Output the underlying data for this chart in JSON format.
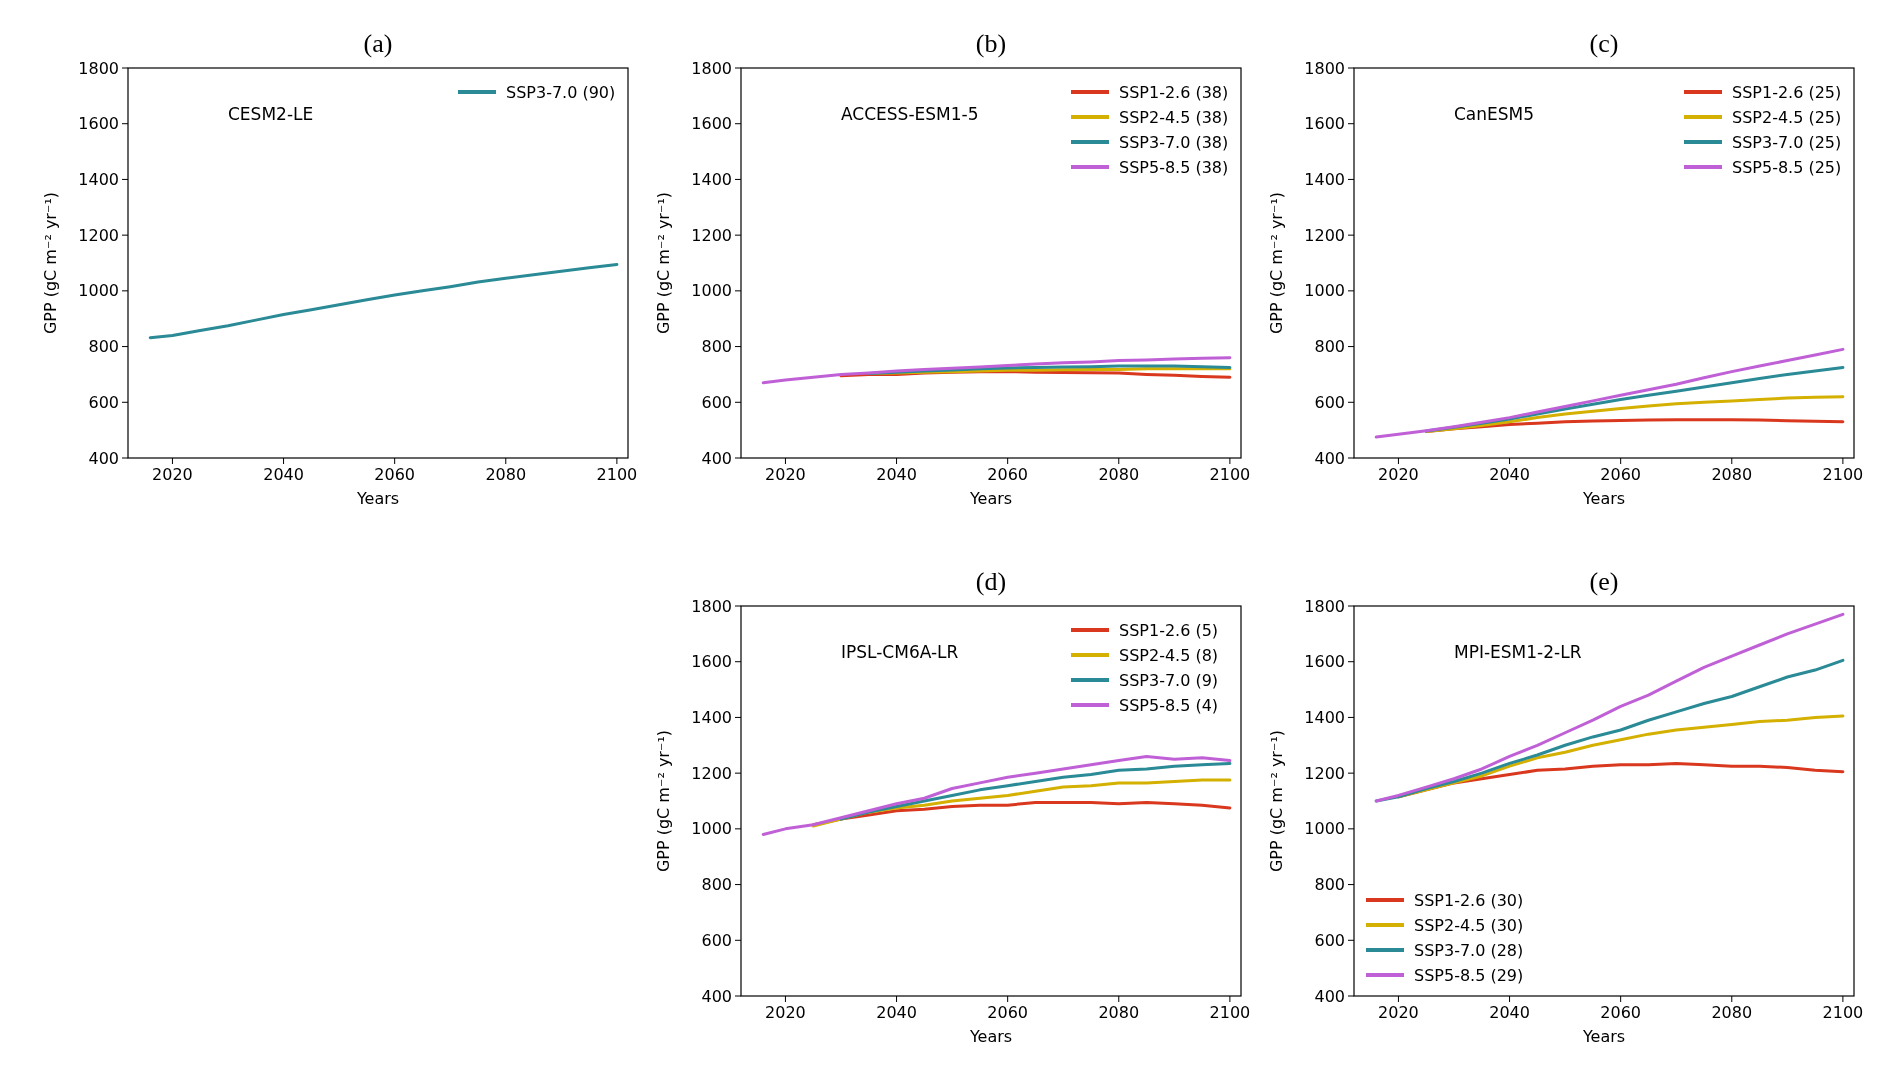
{
  "chart_data": [
    {
      "type": "line",
      "title": "(a)",
      "xlabel": "Years",
      "ylabel": "GPP (gC m⁻² yr⁻¹)",
      "annotations": [
        "CESM2-LE"
      ],
      "x": [
        2016,
        2020,
        2025,
        2030,
        2035,
        2040,
        2045,
        2050,
        2055,
        2060,
        2065,
        2070,
        2075,
        2080,
        2085,
        2090,
        2095,
        2100
      ],
      "xlim": [
        2012,
        2102
      ],
      "xticks": [
        2020,
        2040,
        2060,
        2080,
        2100
      ],
      "ylim": [
        400,
        1800
      ],
      "yticks": [
        400,
        600,
        800,
        1000,
        1200,
        1400,
        1600,
        1800
      ],
      "grid": false,
      "legend": "top right",
      "series": [
        {
          "name": "SSP3-7.0 (90)",
          "color": "#2a8a96",
          "values": [
            832,
            840,
            858,
            875,
            895,
            915,
            932,
            950,
            968,
            985,
            1000,
            1015,
            1032,
            1045,
            1058,
            1070,
            1083,
            1095
          ]
        }
      ]
    },
    {
      "type": "line",
      "title": "(b)",
      "xlabel": "Years",
      "ylabel": "GPP (gC m⁻² yr⁻¹)",
      "annotations": [
        "ACCESS-ESM1-5"
      ],
      "x": [
        2016,
        2020,
        2025,
        2030,
        2035,
        2040,
        2045,
        2050,
        2055,
        2060,
        2065,
        2070,
        2075,
        2080,
        2085,
        2090,
        2095,
        2100
      ],
      "xlim": [
        2012,
        2102
      ],
      "xticks": [
        2020,
        2040,
        2060,
        2080,
        2100
      ],
      "ylim": [
        400,
        1800
      ],
      "yticks": [
        400,
        600,
        800,
        1000,
        1200,
        1400,
        1600,
        1800
      ],
      "grid": false,
      "legend": "top right",
      "series": [
        {
          "name": "SSP1-2.6 (38)",
          "color": "#d9381e",
          "values": [
            null,
            null,
            null,
            695,
            700,
            700,
            705,
            708,
            710,
            710,
            708,
            707,
            706,
            705,
            700,
            697,
            693,
            690
          ]
        },
        {
          "name": "SSP2-4.5 (38)",
          "color": "#d4b000",
          "values": [
            null,
            null,
            null,
            null,
            703,
            705,
            708,
            710,
            712,
            715,
            715,
            717,
            718,
            718,
            720,
            720,
            720,
            720
          ]
        },
        {
          "name": "SSP3-7.0 (38)",
          "color": "#2a8a96",
          "values": [
            null,
            null,
            null,
            null,
            703,
            708,
            712,
            716,
            720,
            723,
            725,
            727,
            728,
            730,
            730,
            730,
            728,
            725
          ]
        },
        {
          "name": "SSP5-8.5 (38)",
          "color": "#c060d6",
          "values": [
            670,
            680,
            690,
            700,
            705,
            712,
            718,
            722,
            727,
            732,
            737,
            742,
            745,
            750,
            752,
            755,
            758,
            760
          ]
        }
      ]
    },
    {
      "type": "line",
      "title": "(c)",
      "xlabel": "Years",
      "ylabel": "GPP (gC m⁻² yr⁻¹)",
      "annotations": [
        "CanESM5"
      ],
      "x": [
        2016,
        2020,
        2025,
        2030,
        2035,
        2040,
        2045,
        2050,
        2055,
        2060,
        2065,
        2070,
        2075,
        2080,
        2085,
        2090,
        2095,
        2100
      ],
      "xlim": [
        2012,
        2102
      ],
      "xticks": [
        2020,
        2040,
        2060,
        2080,
        2100
      ],
      "ylim": [
        400,
        1800
      ],
      "yticks": [
        400,
        600,
        800,
        1000,
        1200,
        1400,
        1600,
        1800
      ],
      "grid": false,
      "legend": "top right",
      "series": [
        {
          "name": "SSP1-2.6 (25)",
          "color": "#d9381e",
          "values": [
            null,
            null,
            495,
            505,
            512,
            520,
            525,
            530,
            533,
            535,
            536,
            537,
            537,
            537,
            536,
            534,
            532,
            530
          ]
        },
        {
          "name": "SSP2-4.5 (25)",
          "color": "#d4b000",
          "values": [
            null,
            null,
            495,
            505,
            517,
            530,
            545,
            558,
            568,
            578,
            587,
            595,
            600,
            605,
            610,
            615,
            618,
            620
          ]
        },
        {
          "name": "SSP3-7.0 (25)",
          "color": "#2a8a96",
          "values": [
            null,
            null,
            497,
            510,
            525,
            540,
            558,
            576,
            593,
            610,
            625,
            640,
            655,
            670,
            685,
            700,
            712,
            725
          ]
        },
        {
          "name": "SSP5-8.5 (25)",
          "color": "#c060d6",
          "values": [
            475,
            485,
            498,
            512,
            528,
            545,
            565,
            585,
            605,
            625,
            645,
            665,
            688,
            710,
            730,
            750,
            770,
            790
          ]
        }
      ]
    },
    {
      "type": "line",
      "title": "(d)",
      "xlabel": "Years",
      "ylabel": "GPP (gC m⁻² yr⁻¹)",
      "annotations": [
        "IPSL-CM6A-LR"
      ],
      "x": [
        2016,
        2020,
        2025,
        2030,
        2035,
        2040,
        2045,
        2050,
        2055,
        2060,
        2065,
        2070,
        2075,
        2080,
        2085,
        2090,
        2095,
        2100
      ],
      "xlim": [
        2012,
        2102
      ],
      "xticks": [
        2020,
        2040,
        2060,
        2080,
        2100
      ],
      "ylim": [
        400,
        1800
      ],
      "yticks": [
        400,
        600,
        800,
        1000,
        1200,
        1400,
        1600,
        1800
      ],
      "grid": false,
      "legend": "top right",
      "series": [
        {
          "name": "SSP1-2.6 (5)",
          "color": "#d9381e",
          "values": [
            null,
            null,
            1015,
            1035,
            1050,
            1065,
            1070,
            1080,
            1085,
            1085,
            1095,
            1095,
            1095,
            1090,
            1095,
            1090,
            1085,
            1075
          ]
        },
        {
          "name": "SSP2-4.5 (8)",
          "color": "#d4b000",
          "values": [
            null,
            null,
            1010,
            1035,
            1060,
            1075,
            1085,
            1100,
            1110,
            1120,
            1135,
            1150,
            1155,
            1165,
            1165,
            1170,
            1175,
            1175
          ]
        },
        {
          "name": "SSP3-7.0 (9)",
          "color": "#2a8a96",
          "values": [
            null,
            null,
            null,
            1035,
            1060,
            1080,
            1100,
            1120,
            1140,
            1155,
            1170,
            1185,
            1195,
            1210,
            1215,
            1225,
            1230,
            1235
          ]
        },
        {
          "name": "SSP5-8.5 (4)",
          "color": "#c060d6",
          "values": [
            980,
            1000,
            1015,
            1040,
            1065,
            1090,
            1110,
            1145,
            1165,
            1185,
            1200,
            1215,
            1230,
            1245,
            1260,
            1250,
            1255,
            1245
          ]
        }
      ]
    },
    {
      "type": "line",
      "title": "(e)",
      "xlabel": "Years",
      "ylabel": "GPP (gC m⁻² yr⁻¹)",
      "annotations": [
        "MPI-ESM1-2-LR"
      ],
      "x": [
        2016,
        2020,
        2025,
        2030,
        2035,
        2040,
        2045,
        2050,
        2055,
        2060,
        2065,
        2070,
        2075,
        2080,
        2085,
        2090,
        2095,
        2100
      ],
      "xlim": [
        2012,
        2102
      ],
      "xticks": [
        2020,
        2040,
        2060,
        2080,
        2100
      ],
      "ylim": [
        400,
        1800
      ],
      "yticks": [
        400,
        600,
        800,
        1000,
        1200,
        1400,
        1600,
        1800
      ],
      "grid": false,
      "legend": "bottom left",
      "series": [
        {
          "name": "SSP1-2.6 (30)",
          "color": "#d9381e",
          "values": [
            null,
            1115,
            1140,
            1165,
            1180,
            1195,
            1210,
            1215,
            1225,
            1230,
            1230,
            1235,
            1230,
            1225,
            1225,
            1220,
            1210,
            1205
          ]
        },
        {
          "name": "SSP2-4.5 (30)",
          "color": "#d4b000",
          "values": [
            null,
            1115,
            1140,
            1165,
            1190,
            1225,
            1255,
            1275,
            1300,
            1320,
            1340,
            1355,
            1365,
            1375,
            1385,
            1390,
            1400,
            1405
          ]
        },
        {
          "name": "SSP3-7.0 (28)",
          "color": "#2a8a96",
          "values": [
            1100,
            1115,
            1145,
            1170,
            1200,
            1235,
            1265,
            1300,
            1330,
            1355,
            1390,
            1420,
            1450,
            1475,
            1510,
            1545,
            1570,
            1605
          ]
        },
        {
          "name": "SSP5-8.5 (29)",
          "color": "#c060d6",
          "values": [
            1100,
            1120,
            1150,
            1180,
            1215,
            1260,
            1300,
            1345,
            1390,
            1440,
            1480,
            1530,
            1580,
            1620,
            1660,
            1700,
            1735,
            1770
          ]
        }
      ]
    }
  ]
}
